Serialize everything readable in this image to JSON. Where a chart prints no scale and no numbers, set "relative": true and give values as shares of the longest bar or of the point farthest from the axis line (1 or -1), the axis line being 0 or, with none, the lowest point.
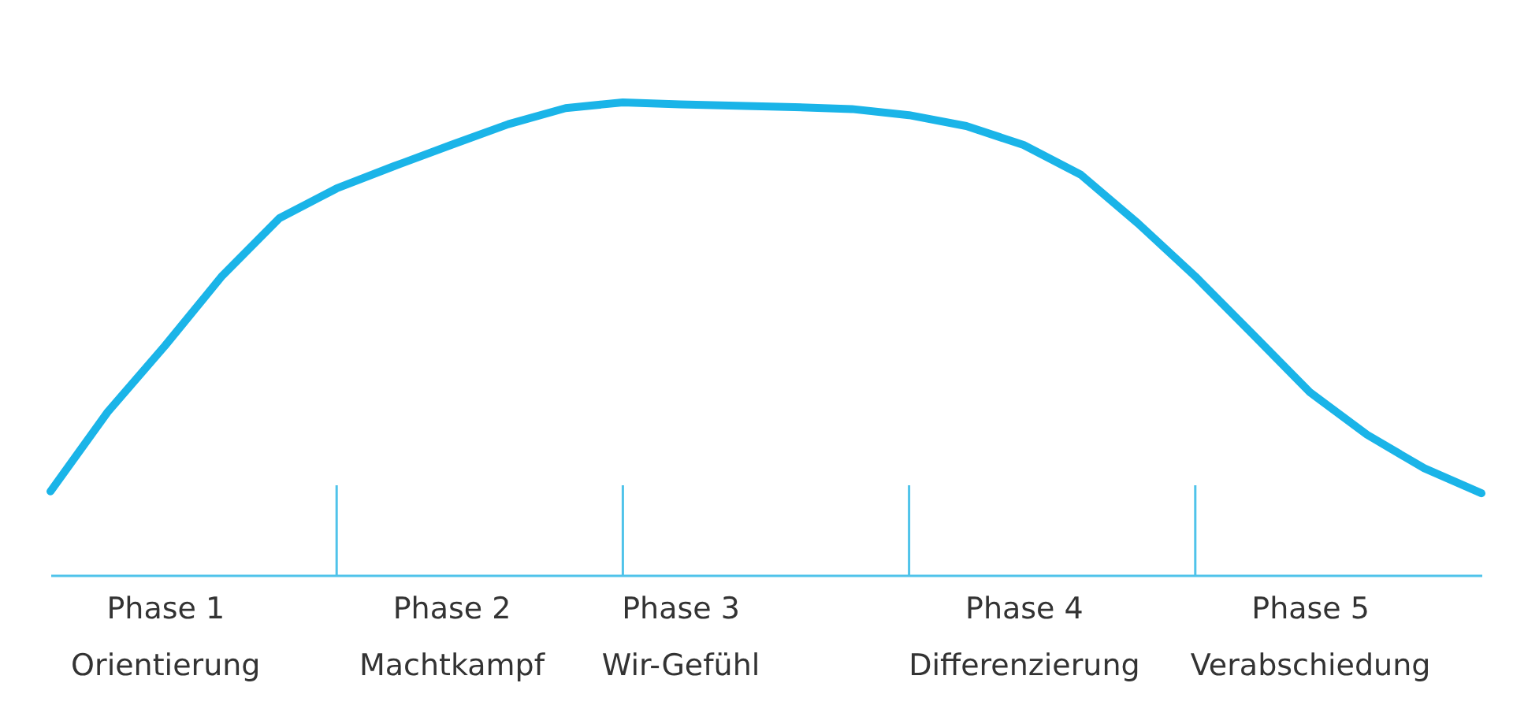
{
  "chart_data": {
    "type": "line",
    "relative": true,
    "tick_labels": "x",
    "categories": [
      null,
      null,
      "Phase 1\nOrientierung",
      null,
      null,
      null,
      null,
      "Phase 2\nMachtkampf",
      null,
      null,
      null,
      "Phase 3\nWir-Gefühl",
      null,
      null,
      null,
      null,
      null,
      "Phase 4\nDifferenzierung",
      null,
      null,
      null,
      null,
      "Phase 5\nVerabschiedung",
      null,
      null,
      null
    ],
    "series": [
      {
        "color": "#1ab4e8",
        "values": [
          0.177,
          0.345,
          0.485,
          0.633,
          0.755,
          0.818,
          0.865,
          0.91,
          0.954,
          0.988,
          1.0,
          0.996,
          0.993,
          0.99,
          0.986,
          0.973,
          0.95,
          0.91,
          0.847,
          0.744,
          0.632,
          0.51,
          0.387,
          0.297,
          0.226,
          0.173
        ]
      }
    ]
  }
}
